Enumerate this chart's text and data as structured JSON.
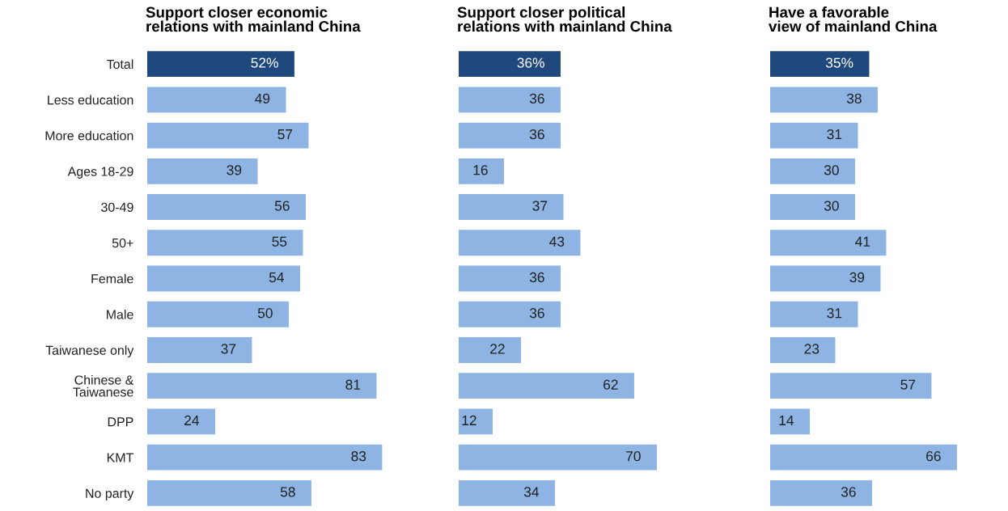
{
  "chart_data": [
    {
      "type": "bar",
      "orientation": "horizontal",
      "title": "Support closer economic\nrelations with mainland China",
      "tick_labels": "y",
      "categories": [
        "Total",
        "Less education",
        "More education",
        "Ages 18-29",
        "30-49",
        "50+",
        "Female",
        "Male",
        "Taiwanese only",
        "Chinese &\nTaiwanese",
        "DPP",
        "KMT",
        "No party"
      ],
      "values": [
        52,
        49,
        57,
        39,
        56,
        55,
        54,
        50,
        37,
        81,
        24,
        83,
        58
      ],
      "value_labels": [
        "52%",
        "49",
        "57",
        "39",
        "56",
        "55",
        "54",
        "50",
        "37",
        "81",
        "24",
        "83",
        "58"
      ],
      "colors": [
        "#1f497d",
        "#8db4e2",
        "#8db4e2",
        "#8db4e2",
        "#8db4e2",
        "#8db4e2",
        "#8db4e2",
        "#8db4e2",
        "#8db4e2",
        "#8db4e2",
        "#8db4e2",
        "#8db4e2",
        "#8db4e2"
      ]
    },
    {
      "type": "bar",
      "orientation": "horizontal",
      "title": "Support closer political\nrelations with mainland China",
      "categories": [
        null,
        null,
        null,
        null,
        null,
        null,
        null,
        null,
        null,
        null,
        null,
        null,
        null
      ],
      "values": [
        36,
        36,
        36,
        16,
        37,
        43,
        36,
        36,
        22,
        62,
        12,
        70,
        34
      ],
      "value_labels": [
        "36%",
        "36",
        "36",
        "16",
        "37",
        "43",
        "36",
        "36",
        "22",
        "62",
        "12",
        "70",
        "34"
      ],
      "colors": [
        "#1f497d",
        "#8db4e2",
        "#8db4e2",
        "#8db4e2",
        "#8db4e2",
        "#8db4e2",
        "#8db4e2",
        "#8db4e2",
        "#8db4e2",
        "#8db4e2",
        "#8db4e2",
        "#8db4e2",
        "#8db4e2"
      ]
    },
    {
      "type": "bar",
      "orientation": "horizontal",
      "title": "Have a favorable\nview of mainland China",
      "categories": [
        null,
        null,
        null,
        null,
        null,
        null,
        null,
        null,
        null,
        null,
        null,
        null,
        null
      ],
      "values": [
        35,
        38,
        31,
        30,
        30,
        41,
        39,
        31,
        23,
        57,
        14,
        66,
        36
      ],
      "value_labels": [
        "35%",
        "38",
        "31",
        "30",
        "30",
        "41",
        "39",
        "31",
        "23",
        "57",
        "14",
        "66",
        "36"
      ],
      "colors": [
        "#1f497d",
        "#8db4e2",
        "#8db4e2",
        "#8db4e2",
        "#8db4e2",
        "#8db4e2",
        "#8db4e2",
        "#8db4e2",
        "#8db4e2",
        "#8db4e2",
        "#8db4e2",
        "#8db4e2",
        "#8db4e2"
      ]
    }
  ]
}
